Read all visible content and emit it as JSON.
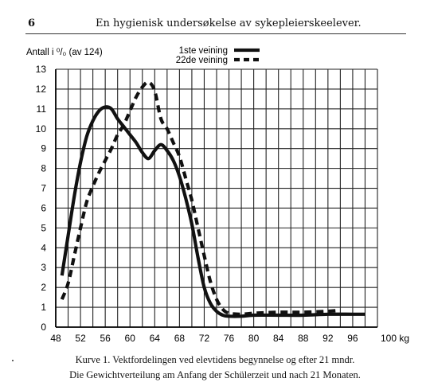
{
  "header": {
    "page_number": "6",
    "running_title": "En hygienisk undersøkelse av sykepleierskeelever."
  },
  "caption": {
    "line1": "Kurve 1.  Vektfordelingen ved elevtidens begynnelse og efter 21 mndr.",
    "line2": "Die Gewichtverteilung am Anfang der Schülerzeit und nach 21 Monaten."
  },
  "chart_data": {
    "type": "line",
    "ylabel": "Antall i ⁰/₀ (av 124)",
    "xunit": "100 kg",
    "xlim": [
      48,
      100
    ],
    "ylim": [
      0,
      13
    ],
    "grid": true,
    "legend_position": "top-center",
    "x_ticks": [
      48,
      52,
      56,
      60,
      64,
      68,
      72,
      76,
      80,
      84,
      88,
      92,
      96
    ],
    "y_ticks": [
      0,
      1,
      2,
      3,
      4,
      5,
      6,
      7,
      8,
      9,
      10,
      11,
      12,
      13
    ],
    "series": [
      {
        "name": "1ste veining",
        "style": "solid",
        "color": "#111111",
        "points": [
          [
            49,
            2.6
          ],
          [
            50,
            4.6
          ],
          [
            51,
            6.6
          ],
          [
            52,
            8.3
          ],
          [
            53,
            9.6
          ],
          [
            54,
            10.4
          ],
          [
            55,
            10.9
          ],
          [
            56,
            11.1
          ],
          [
            57,
            11.0
          ],
          [
            58,
            10.5
          ],
          [
            59,
            10.1
          ],
          [
            60,
            9.7
          ],
          [
            61,
            9.3
          ],
          [
            62,
            8.8
          ],
          [
            63,
            8.5
          ],
          [
            64,
            8.9
          ],
          [
            65,
            9.2
          ],
          [
            66,
            8.9
          ],
          [
            67,
            8.4
          ],
          [
            68,
            7.6
          ],
          [
            69,
            6.5
          ],
          [
            70,
            5.2
          ],
          [
            71,
            3.5
          ],
          [
            72,
            2.0
          ],
          [
            73,
            1.2
          ],
          [
            74,
            0.8
          ],
          [
            75,
            0.6
          ],
          [
            76,
            0.55
          ],
          [
            78,
            0.55
          ],
          [
            80,
            0.6
          ],
          [
            84,
            0.6
          ],
          [
            88,
            0.6
          ],
          [
            92,
            0.65
          ],
          [
            96,
            0.65
          ],
          [
            98,
            0.65
          ]
        ]
      },
      {
        "name": "22de veining",
        "style": "dashed",
        "color": "#111111",
        "points": [
          [
            49,
            1.4
          ],
          [
            50,
            2.2
          ],
          [
            51,
            3.6
          ],
          [
            52,
            5.0
          ],
          [
            53,
            6.3
          ],
          [
            54,
            7.1
          ],
          [
            55,
            7.8
          ],
          [
            56,
            8.4
          ],
          [
            57,
            9.0
          ],
          [
            58,
            9.7
          ],
          [
            59,
            10.2
          ],
          [
            60,
            10.9
          ],
          [
            61,
            11.6
          ],
          [
            62,
            12.1
          ],
          [
            63,
            12.35
          ],
          [
            64,
            11.9
          ],
          [
            65,
            10.5
          ],
          [
            66,
            10.0
          ],
          [
            67,
            9.3
          ],
          [
            68,
            8.6
          ],
          [
            69,
            7.5
          ],
          [
            70,
            6.4
          ],
          [
            71,
            5.0
          ],
          [
            72,
            3.6
          ],
          [
            73,
            2.3
          ],
          [
            74,
            1.4
          ],
          [
            75,
            0.9
          ],
          [
            76,
            0.7
          ],
          [
            78,
            0.65
          ],
          [
            80,
            0.7
          ],
          [
            84,
            0.75
          ],
          [
            88,
            0.75
          ],
          [
            92,
            0.8
          ],
          [
            94,
            0.85
          ]
        ]
      }
    ]
  }
}
